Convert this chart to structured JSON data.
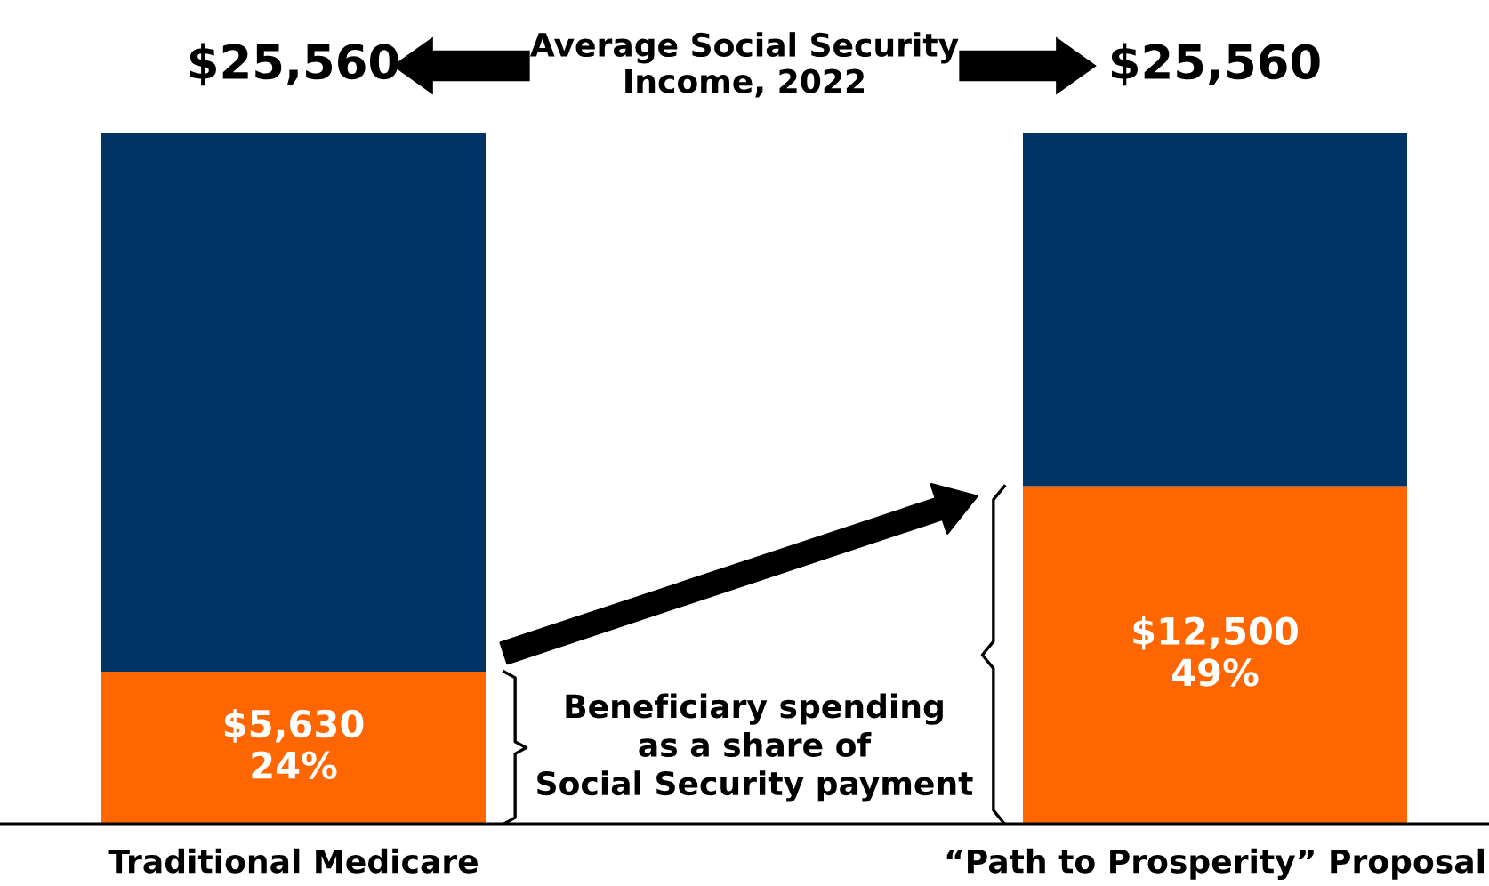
{
  "chart_data": {
    "type": "bar",
    "stacked": true,
    "title": "Average Social Security\nIncome, 2022",
    "categories": [
      "Traditional Medicare",
      "“Path to Prosperity” Proposal"
    ],
    "series": [
      {
        "color": "#ff6600",
        "values": [
          5630,
          12500
        ],
        "value_labels": [
          "$5,630\n24%",
          "$12,500\n49%"
        ]
      },
      {
        "color": "#003366",
        "values": [
          19930,
          13060
        ]
      }
    ],
    "totals": [
      "$25,560",
      "$25,560"
    ],
    "annotations": [
      "Beneficiary spending\nas a share of\nSocial Security payment"
    ],
    "grid": false,
    "legend": false,
    "tick_labels": "x"
  }
}
